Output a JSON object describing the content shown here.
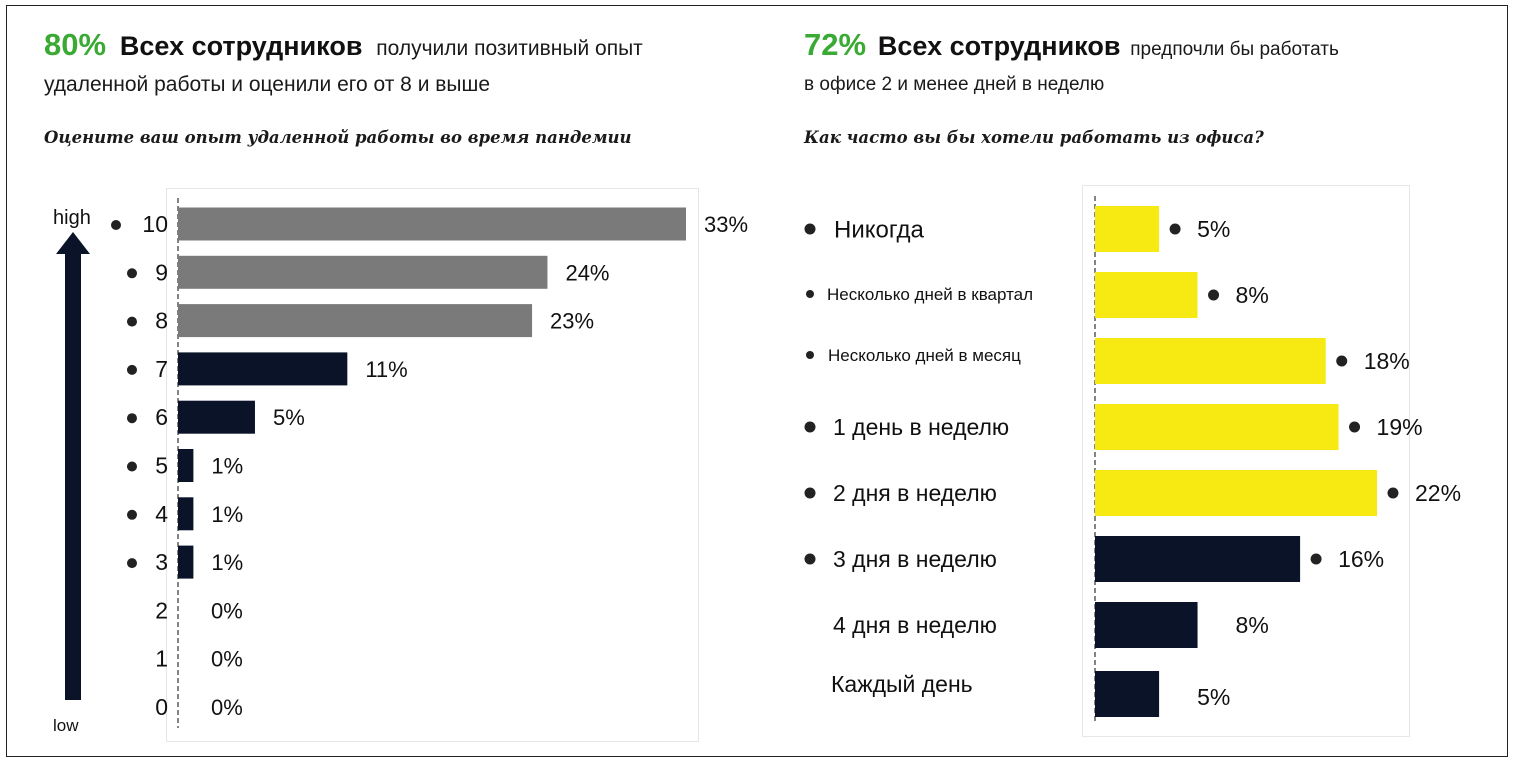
{
  "left": {
    "headline_pct": "80%",
    "headline_bold": "Всех сотрудников",
    "headline_rest": "получили позитивный опыт",
    "headline_line2": "удаленной работы и оценили его от 8 и выше",
    "question": "Оцените ваш опыт удаленной работы во время пандемии",
    "arrow_high": "high",
    "arrow_low": "low"
  },
  "right": {
    "headline_pct": "72%",
    "headline_bold": "Всех сотрудников",
    "headline_rest": "предпочли бы работать",
    "headline_line2": "в офисе 2 и менее дней в неделю",
    "question": "Как часто вы бы хотели работать из офиса?"
  },
  "colors": {
    "accent_green": "#3aaa35",
    "gray_bar": "#7a7a7a",
    "navy_bar": "#0b1328",
    "yellow_bar": "#f7ea12"
  },
  "chart_data": [
    {
      "type": "bar",
      "orientation": "horizontal",
      "categories": [
        "10",
        "9",
        "8",
        "7",
        "6",
        "5",
        "4",
        "3",
        "2",
        "1",
        "0"
      ],
      "values": [
        33,
        24,
        23,
        11,
        5,
        1,
        1,
        1,
        0,
        0,
        0
      ],
      "value_labels": [
        "33%",
        "24%",
        "23%",
        "11%",
        "5%",
        "1%",
        "1%",
        "1%",
        "0%",
        "0%",
        "0%"
      ],
      "bullets": [
        true,
        true,
        true,
        true,
        true,
        true,
        true,
        true,
        false,
        false,
        false
      ],
      "bar_colors": [
        "gray",
        "gray",
        "gray",
        "navy",
        "navy",
        "navy",
        "navy",
        "navy",
        "navy",
        "navy",
        "navy"
      ],
      "xlim": [
        0,
        33
      ]
    },
    {
      "type": "bar",
      "orientation": "horizontal",
      "categories": [
        "Никогда",
        "Несколько дней в квартал",
        "Несколько дней в месяц",
        "1 день в неделю",
        "2 дня в неделю",
        "3 дня в неделю",
        "4 дня в неделю",
        "Каждый день"
      ],
      "values": [
        5,
        8,
        18,
        19,
        22,
        16,
        8,
        5
      ],
      "value_labels": [
        "5%",
        "8%",
        "18%",
        "19%",
        "22%",
        "16%",
        "8%",
        "5%"
      ],
      "bullets": [
        true,
        true,
        true,
        true,
        true,
        true,
        false,
        false
      ],
      "bar_colors": [
        "yellow",
        "yellow",
        "yellow",
        "yellow",
        "yellow",
        "navy",
        "navy",
        "navy"
      ],
      "xlim": [
        0,
        22
      ]
    }
  ]
}
